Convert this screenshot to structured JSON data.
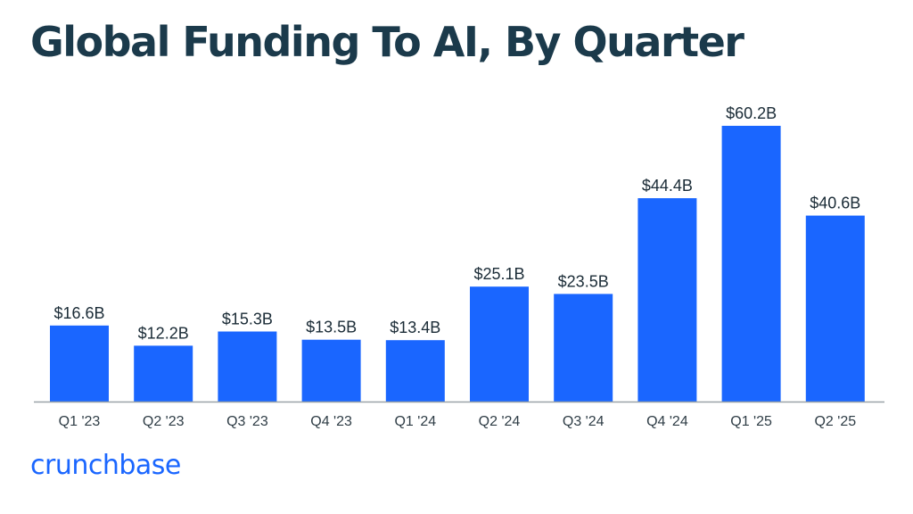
{
  "brand": {
    "logo_text": "crunchbase"
  },
  "colors": {
    "bar": "#1a66ff",
    "title": "#1b3a4b",
    "axis": "#9aa3a8",
    "logo": "#1a66ff"
  },
  "chart_data": {
    "type": "bar",
    "title": "Global Funding To AI, By Quarter",
    "xlabel": "",
    "ylabel": "",
    "categories": [
      "Q1 '23",
      "Q2 '23",
      "Q3 '23",
      "Q4 '23",
      "Q1 '24",
      "Q2 '24",
      "Q3 '24",
      "Q4 '24",
      "Q1 '25",
      "Q2 '25"
    ],
    "values": [
      16.6,
      12.2,
      15.3,
      13.5,
      13.4,
      25.1,
      23.5,
      44.4,
      60.2,
      40.6
    ],
    "value_labels": [
      "$16.6B",
      "$12.2B",
      "$15.3B",
      "$13.5B",
      "$13.4B",
      "$25.1B",
      "$23.5B",
      "$44.4B",
      "$60.2B",
      "$40.6B"
    ],
    "ylim": [
      0,
      60.2
    ],
    "grid": false,
    "legend": "none"
  }
}
